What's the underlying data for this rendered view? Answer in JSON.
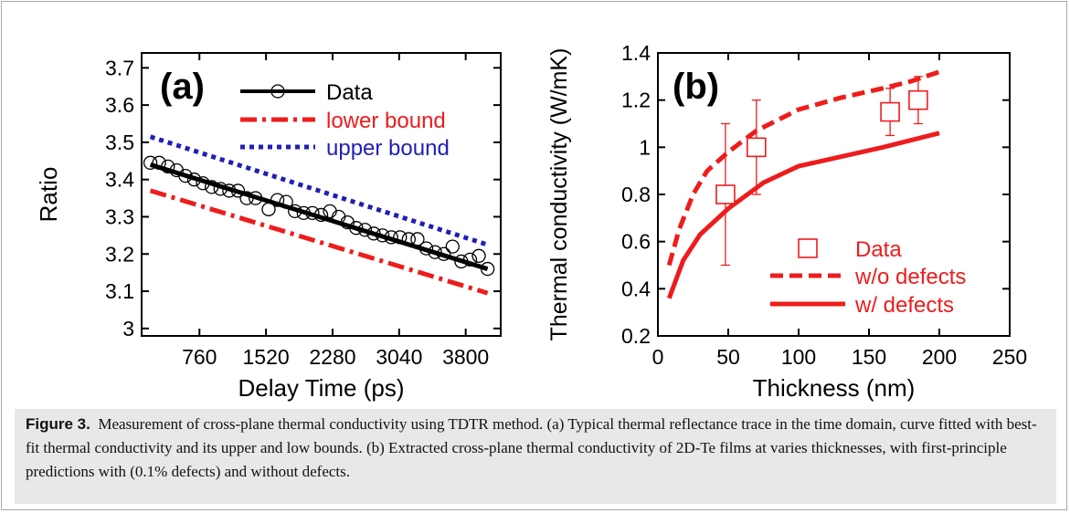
{
  "caption": {
    "label": "Figure 3.",
    "text": "Measurement of cross-plane thermal conductivity using TDTR method. (a) Typical thermal reflectance trace in the time domain, curve fitted with best-fit thermal conductivity and its upper and low bounds. (b) Extracted cross-plane thermal conductivity of 2D-Te films at varies thicknesses, with first-principle predictions with (0.1% defects) and without defects."
  },
  "colors": {
    "black": "#000000",
    "red": "#ee1c1c",
    "blue": "#1f1fb4"
  },
  "chart_data": [
    {
      "type": "scatter",
      "panel_label": "(a)",
      "xlabel": "Delay Time (ps)",
      "ylabel": "Ratio",
      "xlim": [
        100,
        4200
      ],
      "ylim": [
        2.98,
        3.74
      ],
      "xticks": [
        760,
        1520,
        2280,
        3040,
        3800
      ],
      "yticks": [
        3,
        3.1,
        3.2,
        3.3,
        3.4,
        3.5,
        3.6,
        3.7
      ],
      "grid": false,
      "legend_position": "top-right",
      "series": [
        {
          "name": "Data",
          "style": "circle-markers-with-line",
          "color": "#000000",
          "x": [
            200,
            300,
            400,
            500,
            600,
            700,
            800,
            900,
            1000,
            1100,
            1200,
            1300,
            1400,
            1550,
            1650,
            1750,
            1850,
            1950,
            2050,
            2150,
            2250,
            2350,
            2450,
            2550,
            2650,
            2750,
            2850,
            2950,
            3050,
            3150,
            3250,
            3350,
            3450,
            3550,
            3650,
            3750,
            3850,
            3950,
            4050
          ],
          "y": [
            3.445,
            3.445,
            3.435,
            3.425,
            3.41,
            3.4,
            3.39,
            3.38,
            3.375,
            3.37,
            3.37,
            3.35,
            3.35,
            3.32,
            3.345,
            3.34,
            3.315,
            3.31,
            3.31,
            3.305,
            3.315,
            3.3,
            3.285,
            3.27,
            3.265,
            3.255,
            3.25,
            3.245,
            3.245,
            3.24,
            3.24,
            3.215,
            3.205,
            3.2,
            3.22,
            3.18,
            3.185,
            3.195,
            3.16
          ]
        },
        {
          "name": "Data",
          "style": "fit-line",
          "color": "#000000",
          "x": [
            200,
            4050
          ],
          "y": [
            3.44,
            3.16
          ]
        },
        {
          "name": "lower bound",
          "style": "dash-dot",
          "color": "#ee1c1c",
          "x": [
            200,
            4050
          ],
          "y": [
            3.37,
            3.095
          ]
        },
        {
          "name": "upper bound",
          "style": "dotted",
          "color": "#1f1fb4",
          "x": [
            200,
            4050
          ],
          "y": [
            3.515,
            3.225
          ]
        }
      ]
    },
    {
      "type": "scatter",
      "panel_label": "(b)",
      "xlabel": "Thickness (nm)",
      "ylabel": "Thermal conductivity (W/mK)",
      "xlim": [
        0,
        250
      ],
      "ylim": [
        0.2,
        1.4
      ],
      "xticks": [
        0,
        50,
        100,
        150,
        200,
        250
      ],
      "yticks": [
        0.2,
        0.4,
        0.6,
        0.8,
        1,
        1.2,
        1.4
      ],
      "grid": false,
      "legend_position": "bottom-right",
      "series": [
        {
          "name": "Data",
          "style": "open-squares-with-errorbars",
          "color": "#ee1c1c",
          "x": [
            48,
            70,
            165,
            185
          ],
          "y": [
            0.8,
            1.0,
            1.15,
            1.2
          ],
          "err_low": [
            0.5,
            0.8,
            1.05,
            1.1
          ],
          "err_high": [
            1.1,
            1.2,
            1.25,
            1.3
          ]
        },
        {
          "name": "w/o defects",
          "style": "dashed",
          "color": "#ee1c1c",
          "x": [
            8,
            15,
            25,
            35,
            50,
            70,
            100,
            130,
            160,
            180,
            200
          ],
          "y": [
            0.5,
            0.65,
            0.8,
            0.9,
            0.98,
            1.07,
            1.16,
            1.21,
            1.25,
            1.28,
            1.32
          ]
        },
        {
          "name": "w/ defects",
          "style": "solid",
          "color": "#ee1c1c",
          "x": [
            8,
            18,
            30,
            50,
            75,
            100,
            130,
            160,
            200
          ],
          "y": [
            0.36,
            0.52,
            0.63,
            0.74,
            0.85,
            0.92,
            0.96,
            1.0,
            1.06
          ]
        }
      ]
    }
  ]
}
